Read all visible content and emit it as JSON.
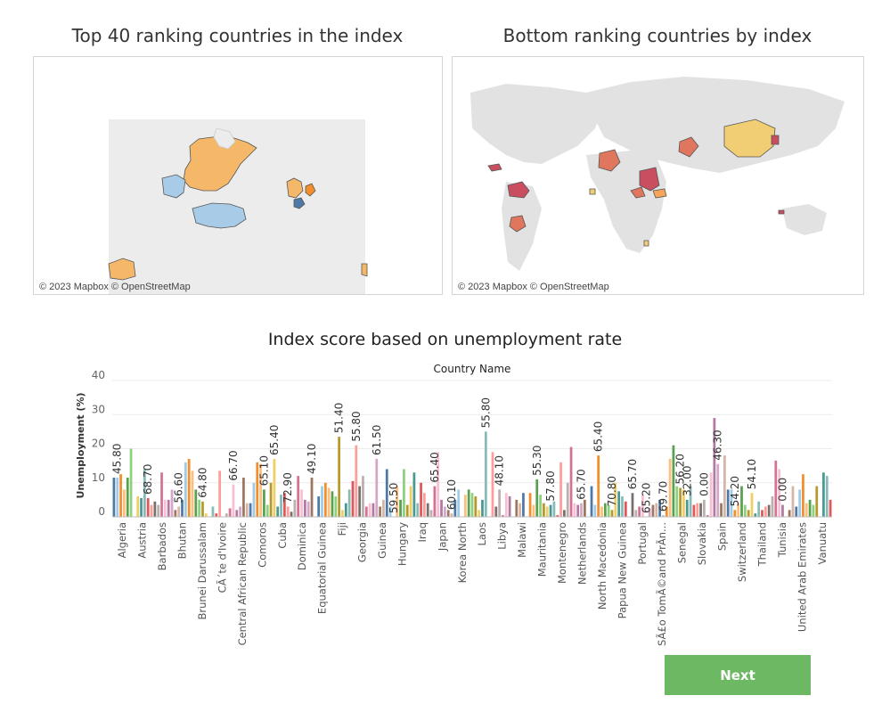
{
  "maps": {
    "left_title": "Top 40 ranking countries in the index",
    "right_title": "Bottom ranking countries by index",
    "credit": "© 2023 Mapbox © OpenStreetMap"
  },
  "next_label": "Next",
  "chart_data": {
    "type": "bar",
    "title": "Index score based on unemployment rate",
    "subtitle": "Country Name",
    "ylabel": "Unemployment (%)",
    "yticks": [
      0,
      10,
      20,
      30,
      40
    ],
    "ylim": [
      0,
      40
    ],
    "x_labels": [
      "Algeria",
      "Austria",
      "Barbados",
      "Bhutan",
      "Brunei Darussalam",
      "CÃ´te d'Ivoire",
      "Central African Republic",
      "Comoros",
      "Cuba",
      "Dominica",
      "Equatorial Guinea",
      "Fiji",
      "Georgia",
      "Guinea",
      "Hungary",
      "Iraq",
      "Japan",
      "Korea North",
      "Laos",
      "Libya",
      "Malawi",
      "Mauritania",
      "Montenegro",
      "Netherlands",
      "North Macedonia",
      "Papua New Guinea",
      "Portugal",
      "SÃ£o TomÃ©and PrÃn...",
      "Senegal",
      "Slovakia",
      "Spain",
      "Switzerland",
      "Thailand",
      "Tunisia",
      "United Arab Emirates",
      "Vanuatu"
    ],
    "values": [
      11.5,
      11.5,
      12.5,
      8,
      11.5,
      20,
      0,
      6,
      5.5,
      14,
      5.5,
      3.5,
      4.5,
      3.5,
      13,
      5,
      5,
      8,
      2,
      3,
      5,
      16,
      17,
      13.5,
      8,
      5,
      4.5,
      1,
      0,
      3,
      1,
      13.5,
      0,
      1,
      2.5,
      9.5,
      2,
      3,
      11.5,
      4,
      4,
      10,
      16,
      15.5,
      8,
      3.5,
      10,
      17,
      3,
      6.5,
      7,
      3,
      1.5,
      5,
      12,
      8,
      5,
      4.5,
      11.5,
      0,
      6,
      9,
      10,
      8.5,
      7.5,
      6,
      23.5,
      2,
      4,
      8,
      10.5,
      21,
      9,
      12,
      3,
      4,
      4,
      17,
      3,
      5,
      14,
      3,
      0,
      9,
      5,
      14,
      3.5,
      9,
      13,
      4,
      10,
      7,
      4,
      2,
      9,
      19,
      5,
      3,
      2,
      1,
      5,
      8,
      0,
      6.5,
      8,
      7,
      6,
      2,
      5,
      25,
      0,
      19,
      3,
      8,
      0.5,
      7,
      6,
      0,
      5,
      4,
      7,
      0,
      7,
      3.5,
      11,
      6.5,
      4,
      3,
      3.5,
      4.5,
      0.5,
      16,
      2,
      10,
      20.5,
      4,
      3.5,
      4,
      5,
      0,
      9,
      3.5,
      18,
      3,
      4,
      3.5,
      2,
      10,
      7.5,
      6,
      4.5,
      0,
      7,
      2,
      3,
      6.5,
      0,
      2.5,
      3.5,
      4,
      5,
      0.5,
      3,
      17,
      21,
      9,
      8.5,
      8,
      5,
      9,
      3.5,
      4,
      4,
      5,
      0.5,
      13,
      29,
      15.5,
      4,
      18,
      8,
      8,
      2,
      4,
      9,
      3.5,
      2,
      7,
      1,
      4.5,
      2,
      3,
      3.5,
      6,
      16.5,
      14,
      3.5,
      0,
      2,
      9,
      3,
      8,
      12.5,
      4,
      5,
      3.5,
      9,
      0,
      13,
      12,
      5
    ],
    "colors": [
      "#4e79a7",
      "#a0cbe8",
      "#f28e2b",
      "#ffbe7d",
      "#59a14f",
      "#8cd17d",
      "#b6992d",
      "#f1ce63",
      "#499894",
      "#86bcb6",
      "#e15759",
      "#ff9d9a",
      "#79706e",
      "#bab0ac",
      "#d37295",
      "#fabfd2",
      "#b07aa1",
      "#d4a6c8",
      "#9d7660",
      "#d7b5a6"
    ],
    "annotations": [
      {
        "label": "45.80",
        "bar": 1
      },
      {
        "label": "68.70",
        "bar": 10
      },
      {
        "label": "56.60",
        "bar": 19
      },
      {
        "label": "64.80",
        "bar": 26
      },
      {
        "label": "66.70",
        "bar": 35
      },
      {
        "label": "65.10",
        "bar": 44
      },
      {
        "label": "65.40",
        "bar": 47
      },
      {
        "label": "72.90",
        "bar": 51
      },
      {
        "label": "49.10",
        "bar": 58
      },
      {
        "label": "51.40",
        "bar": 66
      },
      {
        "label": "55.80",
        "bar": 71
      },
      {
        "label": "61.50",
        "bar": 77
      },
      {
        "label": "59.50",
        "bar": 82
      },
      {
        "label": "65.40",
        "bar": 94
      },
      {
        "label": "60.10",
        "bar": 99
      },
      {
        "label": "55.80",
        "bar": 109
      },
      {
        "label": "48.10",
        "bar": 113
      },
      {
        "label": "55.30",
        "bar": 124
      },
      {
        "label": "57.80",
        "bar": 128
      },
      {
        "label": "65.70",
        "bar": 137
      },
      {
        "label": "65.40",
        "bar": 142
      },
      {
        "label": "70.80",
        "bar": 146
      },
      {
        "label": "65.70",
        "bar": 152
      },
      {
        "label": "65.20",
        "bar": 156
      },
      {
        "label": "69.70",
        "bar": 161
      },
      {
        "label": "56.20",
        "bar": 166
      },
      {
        "label": "32.00",
        "bar": 168
      },
      {
        "label": "0.00",
        "bar": 173
      },
      {
        "label": "46.30",
        "bar": 177
      },
      {
        "label": "54.20",
        "bar": 182
      },
      {
        "label": "54.10",
        "bar": 187
      },
      {
        "label": "0.00",
        "bar": 196
      }
    ]
  }
}
